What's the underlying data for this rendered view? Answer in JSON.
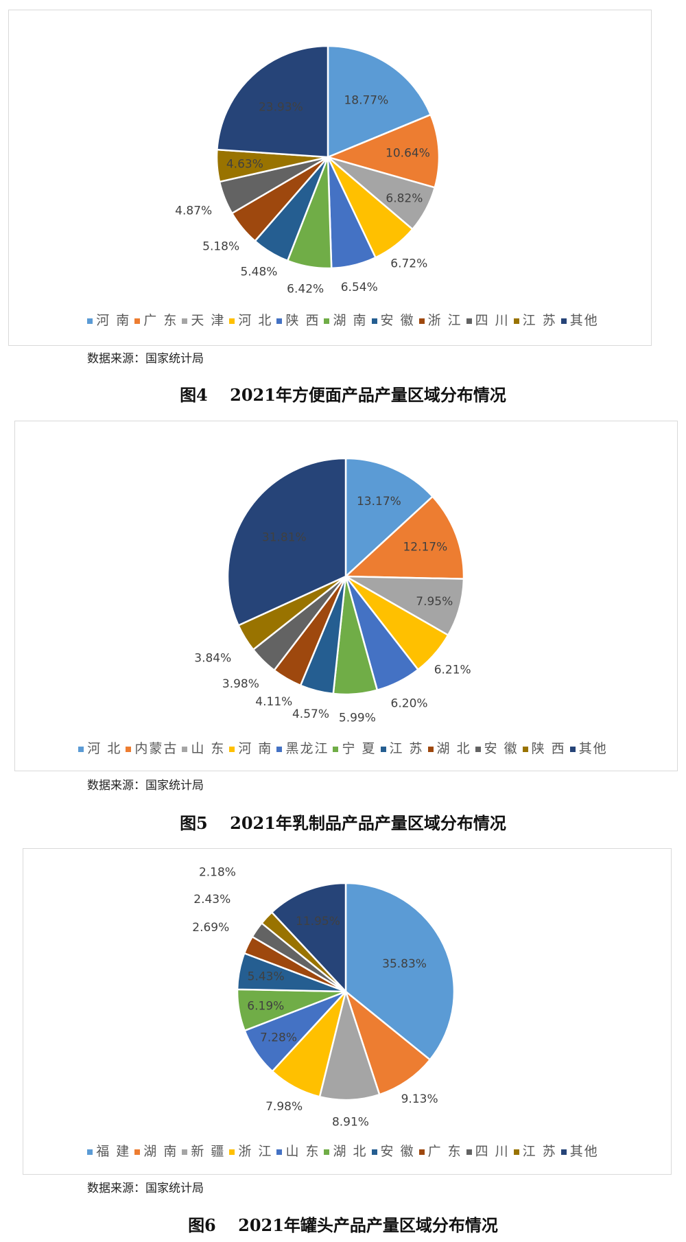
{
  "colors": [
    "#5B9BD5",
    "#ED7D31",
    "#A5A5A5",
    "#FFC000",
    "#4472C4",
    "#70AD47",
    "#255E91",
    "#9E480E",
    "#636363",
    "#997300",
    "#264478"
  ],
  "chart_data": [
    {
      "type": "pie",
      "title": "图4　 2021年方便面产品产量区域分布情况",
      "source": "数据来源：国家统计局",
      "legend_position": "bottom",
      "categories": [
        "河 南",
        "广 东",
        "天 津",
        "河 北",
        "陕 西",
        "湖 南",
        "安 徽",
        "浙 江",
        "四 川",
        "江 苏",
        "其他"
      ],
      "values": [
        18.77,
        10.64,
        6.82,
        6.72,
        6.54,
        6.42,
        5.48,
        5.18,
        4.87,
        4.63,
        23.93
      ],
      "labels": [
        "18.77%",
        "10.64%",
        "6.82%",
        "6.72%",
        "6.54%",
        "6.42%",
        "5.48%",
        "5.18%",
        "4.87%",
        "4.63%",
        "23.93%"
      ]
    },
    {
      "type": "pie",
      "title": "图5　 2021年乳制品产品产量区域分布情况",
      "source": "数据来源：国家统计局",
      "legend_position": "bottom",
      "categories": [
        "河 北",
        "内蒙古",
        "山 东",
        "河 南",
        "黑龙江",
        "宁 夏",
        "江 苏",
        "湖 北",
        "安 徽",
        "陕 西",
        "其他"
      ],
      "values": [
        13.17,
        12.17,
        7.95,
        6.21,
        6.2,
        5.99,
        4.57,
        4.11,
        3.98,
        3.84,
        31.81
      ],
      "labels": [
        "13.17%",
        "12.17%",
        "7.95%",
        "6.21%",
        "6.20%",
        "5.99%",
        "4.57%",
        "4.11%",
        "3.98%",
        "3.84%",
        "31.81%"
      ]
    },
    {
      "type": "pie",
      "title": "图6　 2021年罐头产品产量区域分布情况",
      "source": "数据来源：国家统计局",
      "legend_position": "bottom",
      "categories": [
        "福 建",
        "湖 南",
        "新 疆",
        "浙 江",
        "山 东",
        "湖 北",
        "安 徽",
        "广 东",
        "四 川",
        "江 苏",
        "其他"
      ],
      "values": [
        35.83,
        9.13,
        8.91,
        7.98,
        7.28,
        6.19,
        5.43,
        2.69,
        2.43,
        2.18,
        11.95
      ],
      "labels": [
        "35.83%",
        "9.13%",
        "8.91%",
        "7.98%",
        "7.28%",
        "6.19%",
        "5.43%",
        "2.69%",
        "2.43%",
        "2.18%",
        "11.95%"
      ]
    }
  ]
}
